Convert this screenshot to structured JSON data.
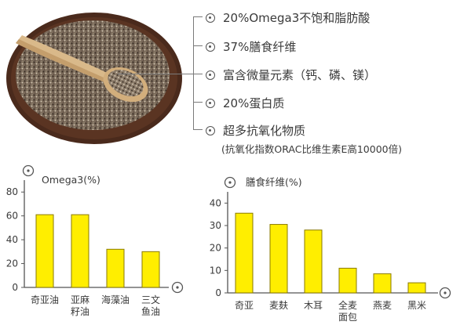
{
  "benefits": [
    "20%Omega3不饱和脂肪酸",
    "37%膳食纤维",
    "富含微量元素（钙、磷、镁）",
    "20%蛋白质",
    "超多抗氧化物质"
  ],
  "benefit_note": "(抗氧化指数ORAC比维生素E高10000倍)",
  "icons": {
    "photo": "chia-seeds-bowl-with-spoon",
    "bullet": "circle-dot-icon"
  },
  "colors": {
    "bar_fill": "#FFEE00",
    "bar_stroke": "#8A7A00",
    "axis": "#555555"
  },
  "chart_data": [
    {
      "type": "bar",
      "title": "Omega3(%)",
      "categories": [
        "奇亚油",
        "亚麻籽油",
        "海藻油",
        "三文鱼油"
      ],
      "category_lines": [
        [
          "奇亚油"
        ],
        [
          "亚麻",
          "籽油"
        ],
        [
          "海藻油"
        ],
        [
          "三文",
          "鱼油"
        ]
      ],
      "values": [
        61,
        61,
        32,
        30
      ],
      "ylim": [
        0,
        90
      ],
      "yticks": [
        "0",
        "20",
        "40",
        "60",
        "80"
      ],
      "ytick_values": [
        0,
        20,
        40,
        60,
        80
      ]
    },
    {
      "type": "bar",
      "title": "膳食纤维(%)",
      "categories": [
        "奇亚",
        "麦麸",
        "木耳",
        "全麦面包",
        "燕麦",
        "黑米"
      ],
      "category_lines": [
        [
          "奇亚"
        ],
        [
          "麦麸"
        ],
        [
          "木耳"
        ],
        [
          "全麦",
          "面包"
        ],
        [
          "燕麦"
        ],
        [
          "黑米"
        ]
      ],
      "values": [
        35.5,
        30.5,
        28,
        11,
        8.5,
        4.5
      ],
      "ylim": [
        0,
        45
      ],
      "yticks": [
        "0",
        "10",
        "20",
        "30",
        "40"
      ],
      "ytick_values": [
        0,
        10,
        20,
        30,
        40
      ]
    }
  ]
}
